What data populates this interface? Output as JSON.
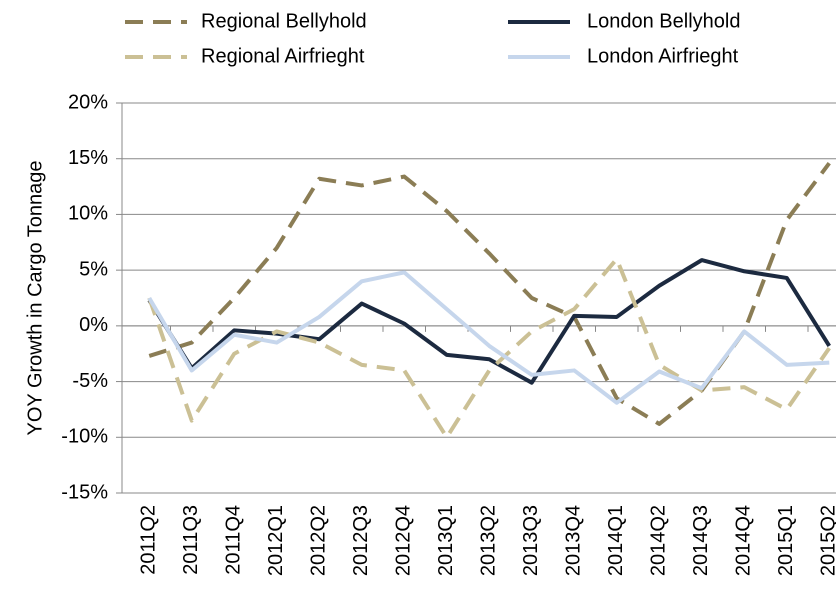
{
  "chart_data": {
    "type": "line",
    "y_label": "YOY Growth in Cargo Tonnage",
    "categories": [
      "2011Q2",
      "2011Q3",
      "2011Q4",
      "2012Q1",
      "2012Q2",
      "2012Q3",
      "2012Q4",
      "2013Q1",
      "2013Q2",
      "2013Q3",
      "2013Q4",
      "2014Q1",
      "2014Q2",
      "2014Q3",
      "2014Q4",
      "2015Q1",
      "2015Q2"
    ],
    "series": [
      {
        "name": "Regional Bellyhold",
        "color": "#8b7d55",
        "dashed": true,
        "values": [
          -2.7,
          -1.5,
          2.5,
          7.0,
          13.2,
          12.6,
          13.4,
          10.3,
          6.5,
          2.5,
          0.8,
          -6.5,
          -8.8,
          -5.8,
          -0.5,
          9.5,
          14.6
        ]
      },
      {
        "name": "London Bellyhold",
        "color": "#1c2a40",
        "dashed": false,
        "values": [
          2.3,
          -3.8,
          -0.4,
          -0.7,
          -1.2,
          2.0,
          0.2,
          -2.6,
          -3.0,
          -5.1,
          0.9,
          0.8,
          3.6,
          5.9,
          4.9,
          4.3,
          -1.8
        ]
      },
      {
        "name": "Regional Airfrieght",
        "color": "#cbc095",
        "dashed": true,
        "values": [
          2.5,
          -8.5,
          -2.5,
          -0.5,
          -1.5,
          -3.5,
          -4.0,
          -10.0,
          -4.0,
          -0.5,
          1.5,
          6.0,
          -3.5,
          -5.8,
          -5.5,
          -7.5,
          -2.0
        ]
      },
      {
        "name": "London Airfrieght",
        "color": "#c6d6ec",
        "dashed": false,
        "values": [
          2.5,
          -4.0,
          -0.8,
          -1.5,
          0.8,
          4.0,
          4.8,
          1.5,
          -1.8,
          -4.4,
          -4.0,
          -6.9,
          -4.1,
          -5.6,
          -0.5,
          -3.5,
          -3.3
        ]
      }
    ],
    "ylim": [
      -15,
      20
    ],
    "yticks": [
      {
        "value": -15,
        "label": "-15%"
      },
      {
        "value": -10,
        "label": "-10%"
      },
      {
        "value": -5,
        "label": "-5%"
      },
      {
        "value": 0,
        "label": "0%"
      },
      {
        "value": 5,
        "label": "5%"
      },
      {
        "value": 10,
        "label": "10%"
      },
      {
        "value": 15,
        "label": "15%"
      },
      {
        "value": 20,
        "label": "20%"
      }
    ],
    "grid": true
  }
}
